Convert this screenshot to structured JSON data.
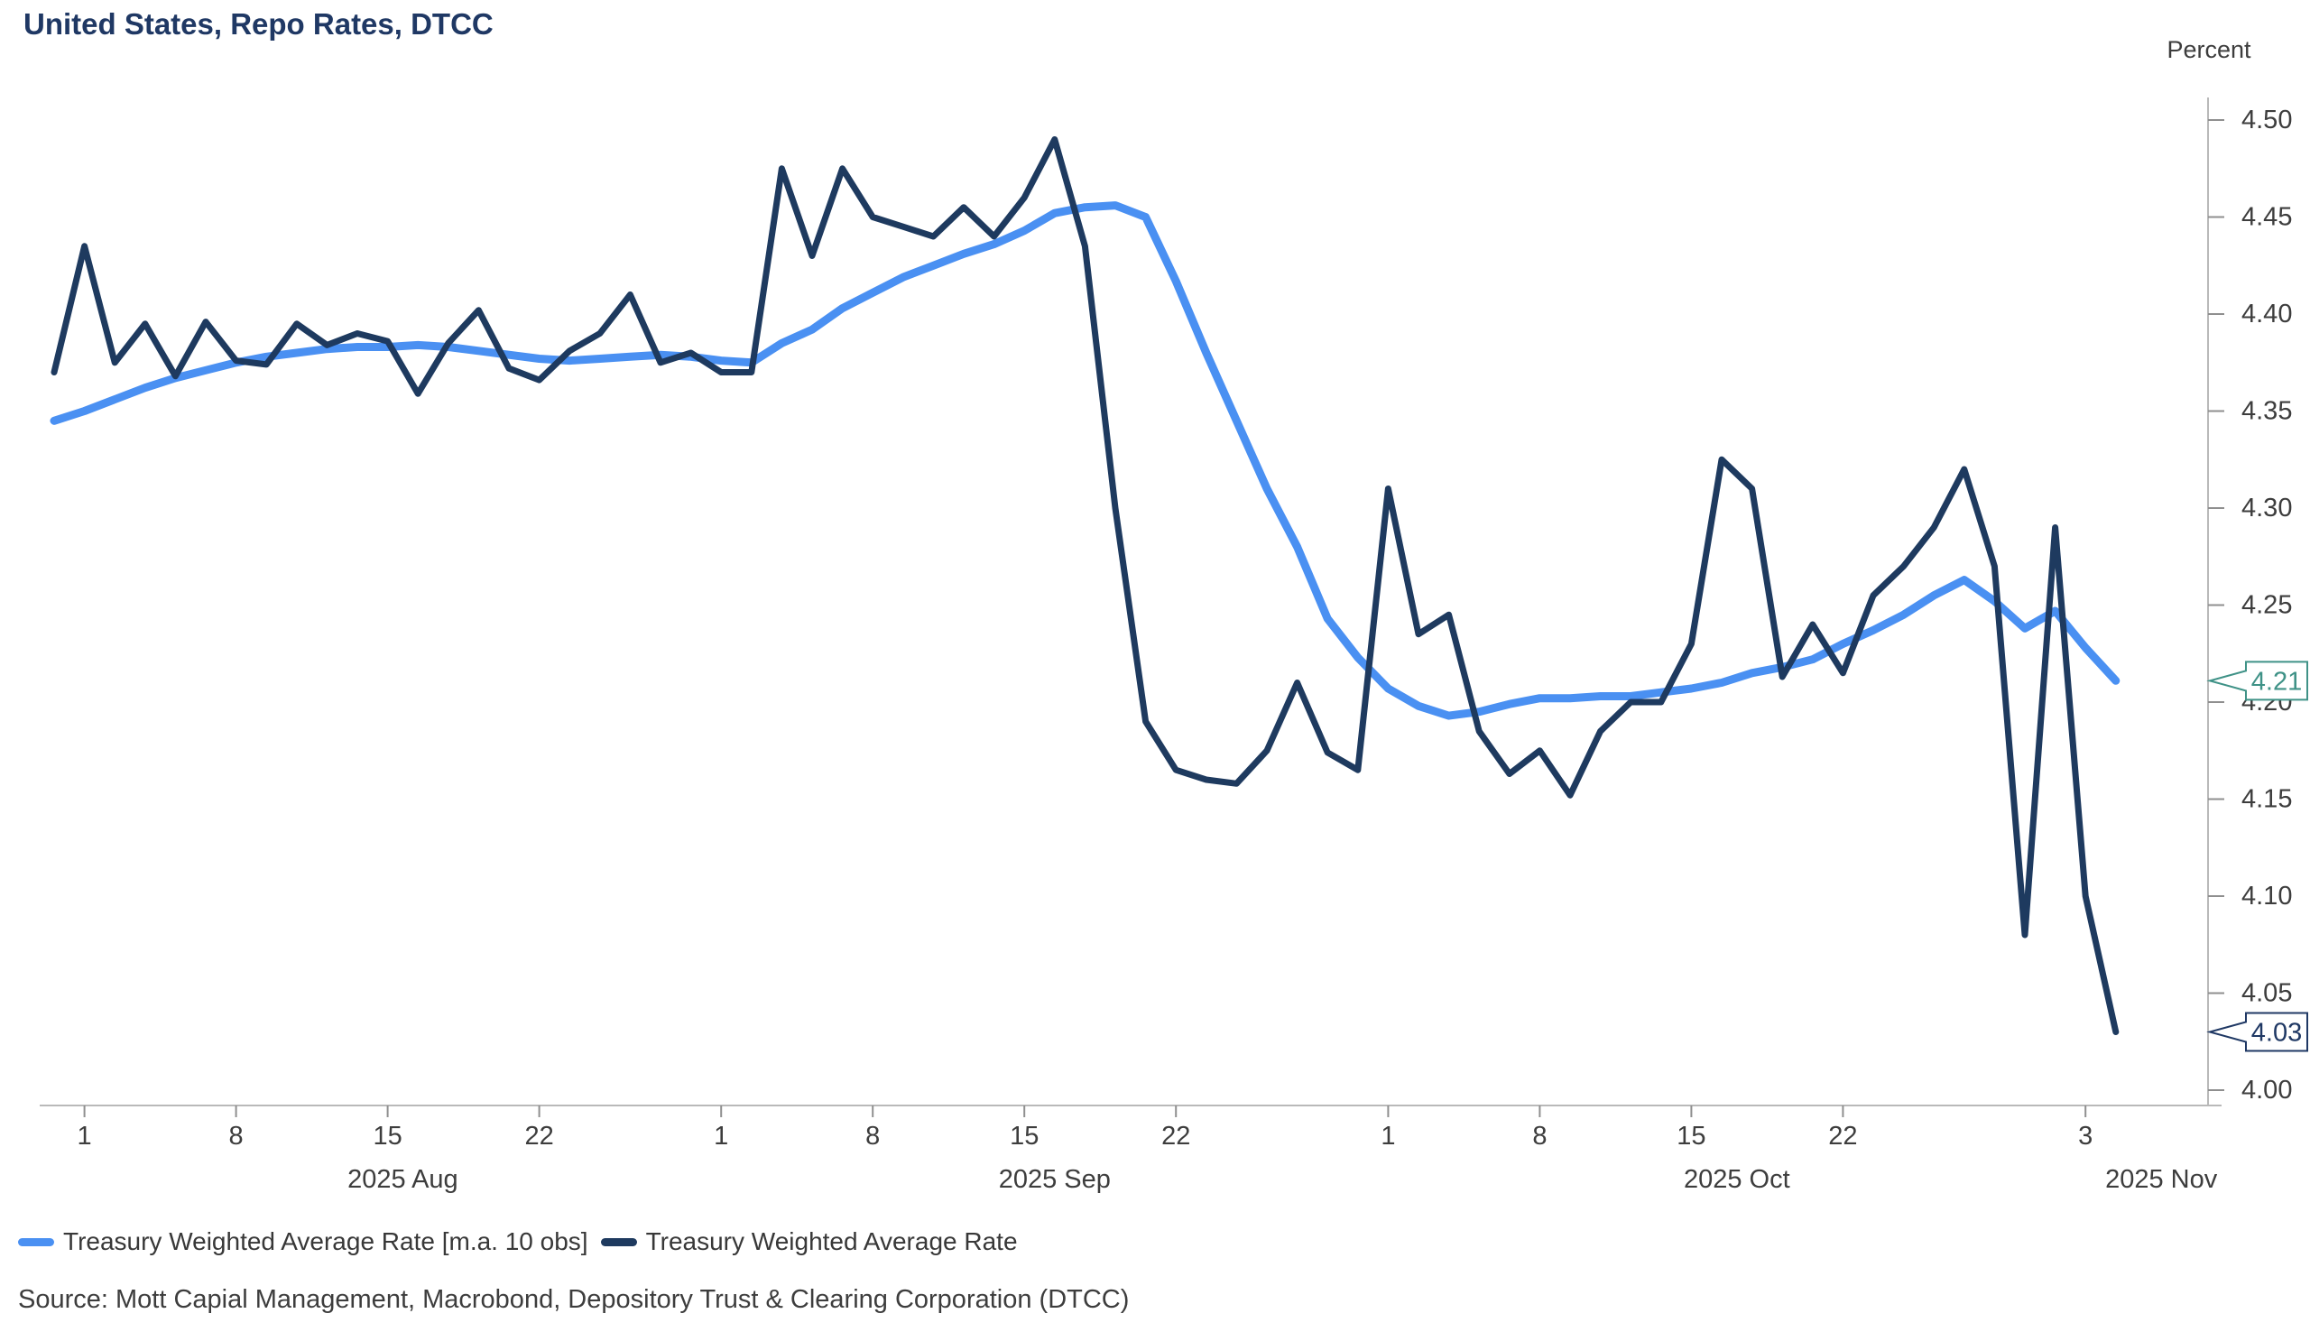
{
  "title": "United States, Repo Rates, DTCC",
  "y_axis_title": "Percent",
  "source": "Source: Mott Capial Management, Macrobond, Depository Trust & Clearing Corporation (DTCC)",
  "legend": [
    {
      "label": "Treasury Weighted Average Rate [m.a. 10 obs]",
      "color": "#4a90f2"
    },
    {
      "label": "Treasury Weighted Average Rate",
      "color": "#1e3a5f"
    }
  ],
  "callouts": [
    {
      "text": "4.21",
      "value": 4.211,
      "color": "#3f9287"
    },
    {
      "text": "4.03",
      "value": 4.03,
      "color": "#1f3864"
    }
  ],
  "colors": {
    "title": "#1f3864",
    "axis_line": "#b9b9b9",
    "tick_mark": "#8f8f8f",
    "tick_text": "#3d3d3d",
    "ma_line": "#4a90f2",
    "daily_line": "#1e3a5f"
  },
  "chart_data": {
    "type": "line",
    "title": "United States, Repo Rates, DTCC",
    "ylabel": "Percent",
    "ylim": [
      4.0,
      4.52
    ],
    "grid": false,
    "legend_position": "bottom",
    "x": [
      "Jul 31",
      "Aug 1",
      "Aug 4",
      "Aug 5",
      "Aug 6",
      "Aug 7",
      "Aug 8",
      "Aug 11",
      "Aug 12",
      "Aug 13",
      "Aug 14",
      "Aug 15",
      "Aug 18",
      "Aug 19",
      "Aug 20",
      "Aug 21",
      "Aug 22",
      "Aug 25",
      "Aug 26",
      "Aug 27",
      "Aug 28",
      "Aug 29",
      "Sep 1",
      "Sep 2",
      "Sep 3",
      "Sep 4",
      "Sep 5",
      "Sep 8",
      "Sep 9",
      "Sep 10",
      "Sep 11",
      "Sep 12",
      "Sep 15",
      "Sep 16",
      "Sep 17",
      "Sep 18",
      "Sep 19",
      "Sep 22",
      "Sep 23",
      "Sep 24",
      "Sep 25",
      "Sep 26",
      "Sep 29",
      "Sep 30",
      "Oct 1",
      "Oct 2",
      "Oct 3",
      "Oct 6",
      "Oct 7",
      "Oct 8",
      "Oct 9",
      "Oct 10",
      "Oct 13",
      "Oct 14",
      "Oct 15",
      "Oct 16",
      "Oct 17",
      "Oct 20",
      "Oct 21",
      "Oct 22",
      "Oct 23",
      "Oct 24",
      "Oct 27",
      "Oct 28",
      "Oct 29",
      "Oct 30",
      "Oct 31",
      "Nov 3",
      "Nov 4"
    ],
    "series": [
      {
        "name": "Treasury Weighted Average Rate [m.a. 10 obs]",
        "color": "#4a90f2",
        "stroke_width": 9,
        "values": [
          4.345,
          4.35,
          4.356,
          4.362,
          4.367,
          4.371,
          4.375,
          4.378,
          4.38,
          4.382,
          4.383,
          4.383,
          4.384,
          4.383,
          4.381,
          4.379,
          4.377,
          4.376,
          4.377,
          4.378,
          4.379,
          4.378,
          4.376,
          4.375,
          4.385,
          4.392,
          4.403,
          4.411,
          4.419,
          4.425,
          4.431,
          4.436,
          4.443,
          4.452,
          4.455,
          4.456,
          4.45,
          4.417,
          4.38,
          4.345,
          4.31,
          4.28,
          4.243,
          4.223,
          4.207,
          4.198,
          4.193,
          4.195,
          4.199,
          4.202,
          4.202,
          4.203,
          4.203,
          4.205,
          4.207,
          4.21,
          4.215,
          4.218,
          4.222,
          4.23,
          4.237,
          4.245,
          4.255,
          4.263,
          4.252,
          4.238,
          4.247,
          4.228,
          4.211
        ]
      },
      {
        "name": "Treasury Weighted Average Rate",
        "color": "#1e3a5f",
        "stroke_width": 7,
        "values": [
          4.37,
          4.435,
          4.375,
          4.395,
          4.368,
          4.396,
          4.376,
          4.374,
          4.395,
          4.384,
          4.39,
          4.386,
          4.359,
          4.385,
          4.402,
          4.372,
          4.366,
          4.381,
          4.39,
          4.41,
          4.375,
          4.38,
          4.37,
          4.37,
          4.475,
          4.43,
          4.475,
          4.45,
          4.445,
          4.44,
          4.455,
          4.44,
          4.46,
          4.49,
          4.435,
          4.3,
          4.19,
          4.165,
          4.16,
          4.158,
          4.175,
          4.21,
          4.174,
          4.165,
          4.31,
          4.235,
          4.245,
          4.185,
          4.163,
          4.175,
          4.152,
          4.185,
          4.2,
          4.2,
          4.23,
          4.325,
          4.31,
          4.213,
          4.24,
          4.215,
          4.255,
          4.27,
          4.29,
          4.32,
          4.27,
          4.08,
          4.29,
          4.1,
          4.03
        ]
      }
    ],
    "y_ticks": [
      4.0,
      4.05,
      4.1,
      4.15,
      4.2,
      4.25,
      4.3,
      4.35,
      4.4,
      4.45,
      4.5
    ],
    "x_ticks": [
      {
        "index": 1,
        "label": "1"
      },
      {
        "index": 6,
        "label": "8"
      },
      {
        "index": 11,
        "label": "15"
      },
      {
        "index": 16,
        "label": "22"
      },
      {
        "index": 22,
        "label": "1"
      },
      {
        "index": 27,
        "label": "8"
      },
      {
        "index": 32,
        "label": "15"
      },
      {
        "index": 37,
        "label": "22"
      },
      {
        "index": 44,
        "label": "1"
      },
      {
        "index": 49,
        "label": "8"
      },
      {
        "index": 54,
        "label": "15"
      },
      {
        "index": 59,
        "label": "22"
      },
      {
        "index": 67,
        "label": "3"
      }
    ],
    "month_labels": [
      {
        "center_index": 11.5,
        "label": "2025 Aug"
      },
      {
        "center_index": 33.0,
        "label": "2025 Sep"
      },
      {
        "center_index": 55.5,
        "label": "2025 Oct"
      },
      {
        "center_index": 69.5,
        "label": "2025 Nov"
      }
    ]
  }
}
